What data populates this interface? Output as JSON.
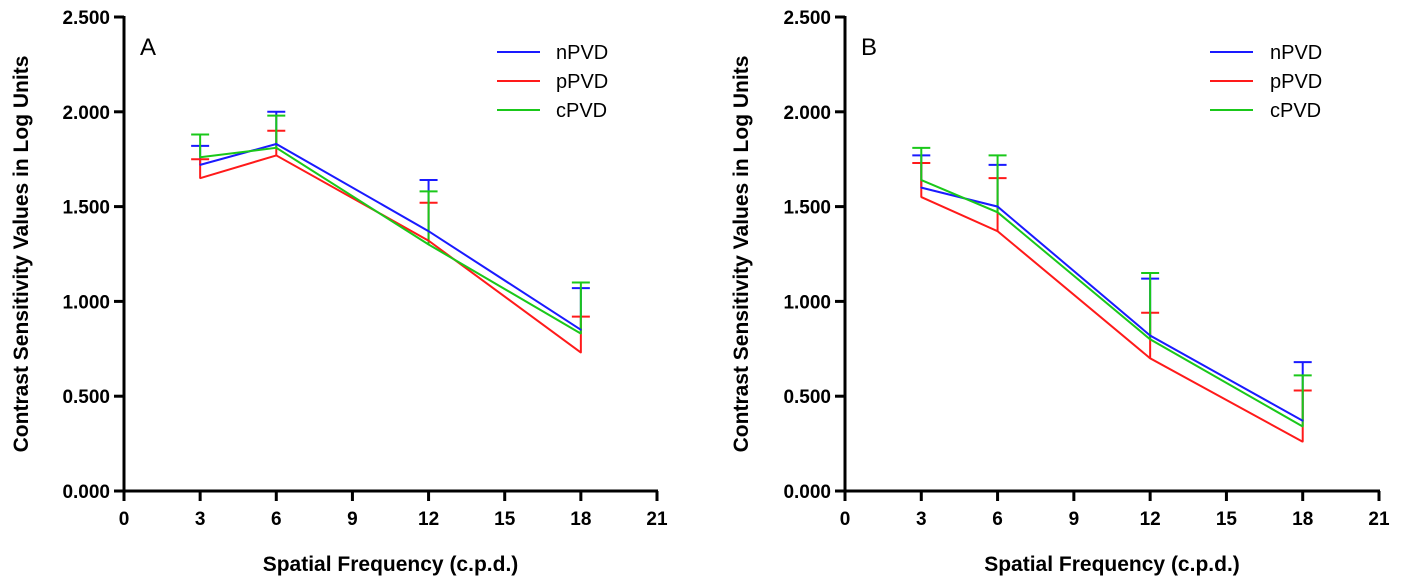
{
  "chart_data": [
    {
      "type": "line",
      "panel_label": "A",
      "xlabel": "Spatial Frequency (c.p.d.)",
      "ylabel": "Contrast Sensitivity Values in Log Units",
      "xlim": [
        0,
        21
      ],
      "ylim": [
        0,
        2.5
      ],
      "x_ticks": [
        "0",
        "3",
        "6",
        "9",
        "12",
        "15",
        "18",
        "21"
      ],
      "y_ticks": [
        "0.000",
        "0.500",
        "1.000",
        "1.500",
        "2.000",
        "2.500"
      ],
      "legend_position": "top-right",
      "x": [
        3,
        6,
        12,
        18
      ],
      "series": [
        {
          "name": "nPVD",
          "color": "#1a1aff",
          "values": [
            1.72,
            1.83,
            1.37,
            0.85
          ],
          "error_upper": [
            1.82,
            2.0,
            1.64,
            1.07
          ]
        },
        {
          "name": "pPVD",
          "color": "#ff1a1a",
          "values": [
            1.65,
            1.77,
            1.32,
            0.73
          ],
          "error_upper": [
            1.75,
            1.9,
            1.52,
            0.92
          ]
        },
        {
          "name": "cPVD",
          "color": "#1ac81a",
          "values": [
            1.76,
            1.81,
            1.3,
            0.83
          ],
          "error_upper": [
            1.88,
            1.98,
            1.58,
            1.1
          ]
        }
      ]
    },
    {
      "type": "line",
      "panel_label": "B",
      "xlabel": "Spatial Frequency (c.p.d.)",
      "ylabel": "Contrast Sensitivity Values in Log Units",
      "xlim": [
        0,
        21
      ],
      "ylim": [
        0,
        2.5
      ],
      "x_ticks": [
        "0",
        "3",
        "6",
        "9",
        "12",
        "15",
        "18",
        "21"
      ],
      "y_ticks": [
        "0.000",
        "0.500",
        "1.000",
        "1.500",
        "2.000",
        "2.500"
      ],
      "legend_position": "top-right",
      "x": [
        3,
        6,
        12,
        18
      ],
      "series": [
        {
          "name": "nPVD",
          "color": "#1a1aff",
          "values": [
            1.6,
            1.5,
            0.82,
            0.37
          ],
          "error_upper": [
            1.77,
            1.72,
            1.12,
            0.68
          ]
        },
        {
          "name": "pPVD",
          "color": "#ff1a1a",
          "values": [
            1.55,
            1.37,
            0.7,
            0.26
          ],
          "error_upper": [
            1.73,
            1.65,
            0.94,
            0.53
          ]
        },
        {
          "name": "cPVD",
          "color": "#1ac81a",
          "values": [
            1.64,
            1.47,
            0.8,
            0.34
          ],
          "error_upper": [
            1.81,
            1.77,
            1.15,
            0.61
          ]
        }
      ]
    }
  ]
}
